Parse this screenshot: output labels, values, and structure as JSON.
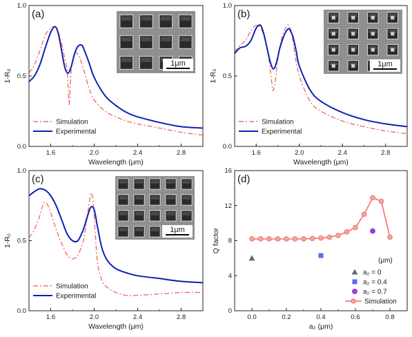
{
  "chart_data": [
    {
      "type": "line",
      "panel_label": "(a)",
      "xlabel": "Wavelength (μm)",
      "ylabel": "1-R₀",
      "xlim": [
        1.4,
        3.0
      ],
      "ylim": [
        0.0,
        1.0
      ],
      "x_ticks": [
        "1.6",
        "2.0",
        "2.4",
        "2.8"
      ],
      "y_ticks": [
        "0.0",
        "0.5",
        "1.0"
      ],
      "inset": {
        "type": "sem_image",
        "pattern": "square holes, 4x3",
        "scale_bar": "1μm"
      },
      "legend_position": "bottom-left",
      "series": [
        {
          "name": "Simulation",
          "style": "dash-dot",
          "color": "#ef6f6c",
          "x": [
            1.4,
            1.45,
            1.5,
            1.55,
            1.6,
            1.63,
            1.66,
            1.7,
            1.73,
            1.75,
            1.76,
            1.77,
            1.79,
            1.82,
            1.86,
            1.9,
            1.95,
            2.0,
            2.1,
            2.2,
            2.3,
            2.4,
            2.6,
            2.8,
            3.0
          ],
          "y": [
            0.52,
            0.58,
            0.68,
            0.79,
            0.84,
            0.85,
            0.83,
            0.73,
            0.62,
            0.55,
            0.43,
            0.3,
            0.55,
            0.66,
            0.64,
            0.55,
            0.42,
            0.33,
            0.25,
            0.21,
            0.18,
            0.16,
            0.13,
            0.1,
            0.08
          ]
        },
        {
          "name": "Experimental",
          "style": "solid",
          "color": "#0d1fb5",
          "x": [
            1.4,
            1.45,
            1.5,
            1.55,
            1.6,
            1.64,
            1.67,
            1.7,
            1.73,
            1.76,
            1.79,
            1.82,
            1.85,
            1.88,
            1.9,
            1.95,
            2.0,
            2.1,
            2.2,
            2.3,
            2.4,
            2.6,
            2.8,
            3.0
          ],
          "y": [
            0.46,
            0.5,
            0.58,
            0.7,
            0.81,
            0.85,
            0.8,
            0.68,
            0.56,
            0.52,
            0.57,
            0.66,
            0.71,
            0.72,
            0.7,
            0.6,
            0.49,
            0.36,
            0.29,
            0.24,
            0.21,
            0.17,
            0.14,
            0.13
          ]
        }
      ]
    },
    {
      "type": "line",
      "panel_label": "(b)",
      "xlabel": "Wavelength (μm)",
      "ylabel": "1-R₀",
      "xlim": [
        1.4,
        3.0
      ],
      "ylim": [
        0.0,
        1.0
      ],
      "x_ticks": [
        "1.6",
        "2.0",
        "2.4",
        "2.8"
      ],
      "y_ticks": [
        "0.0",
        "0.5",
        "1.0"
      ],
      "inset": {
        "type": "sem_image",
        "pattern": "square holes with inner pillars, 4x4",
        "scale_bar": "1μm"
      },
      "legend_position": "bottom-left",
      "series": [
        {
          "name": "Simulation",
          "style": "dash-dot",
          "color": "#ef6f6c",
          "x": [
            1.4,
            1.45,
            1.5,
            1.55,
            1.6,
            1.65,
            1.7,
            1.73,
            1.75,
            1.76,
            1.78,
            1.8,
            1.84,
            1.88,
            1.9,
            1.93,
            1.96,
            2.0,
            2.1,
            2.2,
            2.4,
            2.6,
            2.8,
            3.0
          ],
          "y": [
            0.67,
            0.72,
            0.75,
            0.82,
            0.86,
            0.83,
            0.7,
            0.55,
            0.42,
            0.4,
            0.48,
            0.62,
            0.78,
            0.85,
            0.86,
            0.8,
            0.65,
            0.5,
            0.32,
            0.25,
            0.18,
            0.14,
            0.11,
            0.09
          ]
        },
        {
          "name": "Experimental",
          "style": "solid",
          "color": "#0d1fb5",
          "x": [
            1.4,
            1.45,
            1.5,
            1.55,
            1.6,
            1.64,
            1.67,
            1.7,
            1.73,
            1.76,
            1.79,
            1.82,
            1.86,
            1.89,
            1.91,
            1.94,
            1.97,
            2.0,
            2.1,
            2.2,
            2.4,
            2.6,
            2.8,
            3.0
          ],
          "y": [
            0.66,
            0.7,
            0.71,
            0.75,
            0.84,
            0.86,
            0.8,
            0.7,
            0.6,
            0.55,
            0.6,
            0.7,
            0.79,
            0.83,
            0.83,
            0.78,
            0.68,
            0.57,
            0.4,
            0.32,
            0.24,
            0.19,
            0.16,
            0.14
          ]
        }
      ]
    },
    {
      "type": "line",
      "panel_label": "(c)",
      "xlabel": "Wavelength (μm)",
      "ylabel": "1-R₀",
      "xlim": [
        1.4,
        3.0
      ],
      "ylim": [
        0.0,
        1.0
      ],
      "x_ticks": [
        "1.6",
        "2.0",
        "2.4",
        "2.8"
      ],
      "y_ticks": [
        "0.0",
        "0.5",
        "1.0"
      ],
      "inset": {
        "type": "sem_image",
        "pattern": "square holes, 5x4",
        "scale_bar": "1μm"
      },
      "legend_position": "bottom-left",
      "series": [
        {
          "name": "Simulation",
          "style": "dash-dot",
          "color": "#ef6f6c",
          "x": [
            1.4,
            1.45,
            1.5,
            1.53,
            1.56,
            1.6,
            1.65,
            1.7,
            1.75,
            1.8,
            1.85,
            1.9,
            1.93,
            1.96,
            1.97,
            1.99,
            2.01,
            2.03,
            2.06,
            2.1,
            2.2,
            2.3,
            2.4,
            2.6,
            2.8,
            3.0
          ],
          "y": [
            0.52,
            0.58,
            0.68,
            0.76,
            0.77,
            0.7,
            0.58,
            0.48,
            0.4,
            0.37,
            0.4,
            0.5,
            0.64,
            0.8,
            0.84,
            0.78,
            0.55,
            0.35,
            0.24,
            0.18,
            0.13,
            0.11,
            0.11,
            0.12,
            0.13,
            0.13
          ]
        },
        {
          "name": "Experimental",
          "style": "solid",
          "color": "#0d1fb5",
          "x": [
            1.4,
            1.45,
            1.5,
            1.55,
            1.6,
            1.65,
            1.7,
            1.75,
            1.8,
            1.85,
            1.9,
            1.94,
            1.97,
            2.0,
            2.03,
            2.07,
            2.12,
            2.2,
            2.3,
            2.4,
            2.6,
            2.8,
            3.0
          ],
          "y": [
            0.82,
            0.85,
            0.87,
            0.86,
            0.82,
            0.75,
            0.65,
            0.55,
            0.5,
            0.5,
            0.58,
            0.68,
            0.74,
            0.72,
            0.6,
            0.45,
            0.36,
            0.3,
            0.27,
            0.25,
            0.23,
            0.21,
            0.2
          ]
        }
      ]
    },
    {
      "type": "scatter",
      "panel_label": "(d)",
      "xlabel": "a₂ (μm)",
      "ylabel": "Q factor",
      "xlim": [
        -0.1,
        0.9
      ],
      "ylim": [
        0,
        16
      ],
      "x_ticks": [
        "0.0",
        "0.2",
        "0.4",
        "0.6",
        "0.8"
      ],
      "y_ticks": [
        "0",
        "4",
        "8",
        "12",
        "16"
      ],
      "legend_position": "bottom-right",
      "legend_title": "(μm)",
      "points": [
        {
          "name": "a₂ = 0",
          "marker": "triangle",
          "color": "#6a6a6a",
          "x": 0.0,
          "y": 6.0
        },
        {
          "name": "a₂ = 0.4",
          "marker": "square",
          "color": "#5b6ee8",
          "x": 0.4,
          "y": 6.3
        },
        {
          "name": "a₂ = 0.7",
          "marker": "circle",
          "color": "#9b3fe0",
          "x": 0.7,
          "y": 9.1
        }
      ],
      "series": [
        {
          "name": "Simulation",
          "style": "line+circle",
          "color": "#ef6f6c",
          "x": [
            0.0,
            0.05,
            0.1,
            0.15,
            0.2,
            0.25,
            0.3,
            0.35,
            0.4,
            0.45,
            0.5,
            0.55,
            0.6,
            0.65,
            0.7,
            0.75,
            0.8
          ],
          "y": [
            8.2,
            8.2,
            8.2,
            8.2,
            8.2,
            8.2,
            8.2,
            8.25,
            8.3,
            8.4,
            8.6,
            9.0,
            9.5,
            11.0,
            12.9,
            12.5,
            8.4
          ]
        }
      ]
    }
  ]
}
